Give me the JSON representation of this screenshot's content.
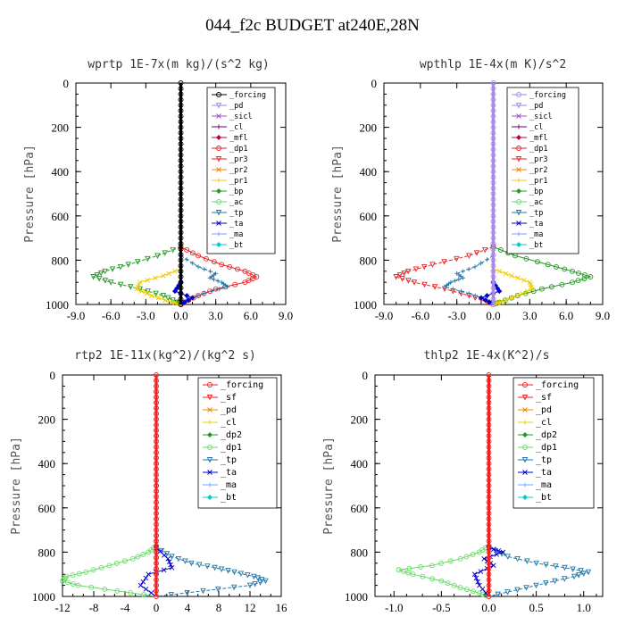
{
  "figure_title": "044_f2c  BUDGET at240E,28N",
  "colors": {
    "black": "#000000",
    "purple": "#9955cc",
    "violet": "#aa88ee",
    "darkpurple": "#660066",
    "crimson": "#bb0044",
    "red": "#ee2222",
    "orange": "#ee8800",
    "yellow": "#eecc00",
    "lightgreen": "#66dd66",
    "green": "#229922",
    "teal": "#2277aa",
    "blue": "#0000cc",
    "lightblue": "#66aaff",
    "cyan": "#00cccc"
  },
  "chart_data": [
    {
      "type": "line",
      "title": "wprtp  1E-7x(m kg)/(s^2 kg)",
      "ylabel": "Pressure [hPa]",
      "xlim": [
        -9,
        9
      ],
      "ylim": [
        1000,
        0
      ],
      "xticks": [
        "-9.0",
        "-6.0",
        "-3.0",
        "0.0",
        "3.0",
        "6.0",
        "9.0"
      ],
      "xtick_values": [
        -9,
        -6,
        -3,
        0,
        3,
        6,
        9
      ],
      "yticks": [
        "0",
        "200",
        "400",
        "600",
        "800",
        "1000"
      ],
      "ytick_values": [
        0,
        200,
        400,
        600,
        800,
        1000
      ],
      "legend_entries": [
        "_forcing",
        "_pd",
        "_sicl",
        "_cl",
        "_mfl",
        "_dp1",
        "_pr3",
        "_pr2",
        "_pr1",
        "_bp",
        "_ac",
        "_tp",
        "_ta",
        "_ma",
        "_bt"
      ],
      "legend_colors": [
        "black",
        "violet",
        "purple",
        "darkpurple",
        "crimson",
        "red",
        "red",
        "orange",
        "yellow",
        "green",
        "lightgreen",
        "teal",
        "blue",
        "lightblue",
        "cyan"
      ],
      "series": [
        {
          "color": "red",
          "p": [
            740,
            780,
            820,
            850,
            875,
            900,
            930,
            960,
            990,
            1000
          ],
          "x": [
            0,
            1.5,
            3.5,
            5.5,
            6.5,
            5.5,
            3.0,
            1.5,
            0.3,
            0
          ]
        },
        {
          "color": "green",
          "p": [
            740,
            780,
            820,
            850,
            875,
            900,
            930,
            960,
            990,
            1000
          ],
          "x": [
            0,
            -2.0,
            -4.5,
            -6.5,
            -7.5,
            -6.0,
            -3.5,
            -1.5,
            -0.3,
            0
          ]
        },
        {
          "color": "yellow",
          "p": [
            840,
            870,
            900,
            930,
            960,
            990,
            1000
          ],
          "x": [
            0,
            -1.5,
            -3.5,
            -3.8,
            -2.5,
            -0.8,
            0
          ]
        },
        {
          "color": "teal",
          "p": [
            780,
            830,
            860,
            880,
            900,
            920,
            950,
            980,
            1000
          ],
          "x": [
            0,
            1.5,
            3.0,
            2.5,
            3.5,
            4.0,
            2.0,
            0.5,
            0
          ]
        },
        {
          "color": "blue",
          "p": [
            900,
            940,
            970,
            1000
          ],
          "x": [
            0,
            -0.5,
            1.0,
            0
          ]
        },
        {
          "color": "black",
          "p": [
            0,
            1000
          ],
          "x": [
            0,
            0
          ]
        }
      ]
    },
    {
      "type": "line",
      "title": "wpthlp  1E-4x(m K)/s^2",
      "ylabel": "Pressure [hPa]",
      "xlim": [
        -9,
        9
      ],
      "ylim": [
        1000,
        0
      ],
      "xticks": [
        "-9.0",
        "-6.0",
        "-3.0",
        "0.0",
        "3.0",
        "6.0",
        "9.0"
      ],
      "xtick_values": [
        -9,
        -6,
        -3,
        0,
        3,
        6,
        9
      ],
      "yticks": [
        "0",
        "200",
        "400",
        "600",
        "800",
        "1000"
      ],
      "ytick_values": [
        0,
        200,
        400,
        600,
        800,
        1000
      ],
      "legend_entries": [
        "_forcing",
        "_pd",
        "_sicl",
        "_cl",
        "_mfl",
        "_dp1",
        "_pr3",
        "_pr2",
        "_pr1",
        "_bp",
        "_ac",
        "_tp",
        "_ta",
        "_ma",
        "_bt"
      ],
      "legend_colors": [
        "violet",
        "violet",
        "purple",
        "darkpurple",
        "crimson",
        "red",
        "red",
        "orange",
        "yellow",
        "green",
        "lightgreen",
        "teal",
        "blue",
        "lightblue",
        "cyan"
      ],
      "series": [
        {
          "color": "green",
          "p": [
            740,
            780,
            820,
            850,
            875,
            900,
            930,
            960,
            990,
            1000
          ],
          "x": [
            0,
            1.8,
            4.5,
            6.5,
            8.0,
            6.5,
            4.0,
            2.0,
            0.5,
            0
          ]
        },
        {
          "color": "red",
          "p": [
            740,
            780,
            820,
            850,
            875,
            900,
            930,
            960,
            990,
            1000
          ],
          "x": [
            0,
            -2.0,
            -5.0,
            -7.0,
            -8.0,
            -6.5,
            -4.0,
            -2.0,
            -0.5,
            0
          ]
        },
        {
          "color": "yellow",
          "p": [
            840,
            870,
            900,
            930,
            960,
            990,
            1000
          ],
          "x": [
            0,
            1.5,
            3.0,
            3.2,
            2.0,
            0.6,
            0
          ]
        },
        {
          "color": "teal",
          "p": [
            780,
            830,
            860,
            880,
            900,
            920,
            950,
            980,
            1000
          ],
          "x": [
            0,
            -1.5,
            -3.0,
            -2.5,
            -3.5,
            -4.0,
            -2.0,
            -0.5,
            0
          ]
        },
        {
          "color": "blue",
          "p": [
            900,
            940,
            970,
            1000
          ],
          "x": [
            0,
            0.5,
            -1.0,
            0
          ]
        },
        {
          "color": "violet",
          "p": [
            0,
            1000
          ],
          "x": [
            0,
            0
          ]
        }
      ]
    },
    {
      "type": "line",
      "title": "rtp2  1E-11x(kg^2)/(kg^2 s)",
      "ylabel": "Pressure [hPa]",
      "xlim": [
        -12,
        16
      ],
      "ylim": [
        1000,
        0
      ],
      "xticks": [
        "-12",
        "-8",
        "-4",
        "0",
        "4",
        "8",
        "12",
        "16"
      ],
      "xtick_values": [
        -12,
        -8,
        -4,
        0,
        4,
        8,
        12,
        16
      ],
      "yticks": [
        "0",
        "200",
        "400",
        "600",
        "800",
        "1000"
      ],
      "ytick_values": [
        0,
        200,
        400,
        600,
        800,
        1000
      ],
      "legend_entries": [
        "_forcing",
        "_sf",
        "_pd",
        "_cl",
        "_dp2",
        "_dp1",
        "_tp",
        "_ta",
        "_ma",
        "_bt"
      ],
      "legend_colors": [
        "red",
        "red",
        "orange",
        "yellow",
        "green",
        "lightgreen",
        "teal",
        "blue",
        "lightblue",
        "cyan"
      ],
      "series": [
        {
          "color": "lightgreen",
          "p": [
            770,
            800,
            830,
            860,
            890,
            910,
            930,
            950,
            975,
            1000
          ],
          "x": [
            0,
            -1.0,
            -3.0,
            -6.0,
            -9.0,
            -11.5,
            -12.0,
            -10.0,
            -5.0,
            0
          ]
        },
        {
          "color": "teal",
          "p": [
            780,
            820,
            850,
            870,
            890,
            910,
            930,
            950,
            975,
            1000
          ],
          "x": [
            0,
            2.0,
            4.5,
            7.5,
            10.0,
            12.5,
            14.0,
            12.0,
            6.0,
            0
          ]
        },
        {
          "color": "blue",
          "p": [
            780,
            830,
            870,
            900,
            950,
            1000
          ],
          "x": [
            0,
            1.5,
            2.0,
            -1.0,
            -2.0,
            0
          ]
        },
        {
          "color": "red",
          "p": [
            0,
            1000
          ],
          "x": [
            0,
            0
          ]
        }
      ]
    },
    {
      "type": "line",
      "title": "thlp2  1E-4x(K^2)/s",
      "ylabel": "Pressure [hPa]",
      "xlim": [
        -1.2,
        1.2
      ],
      "ylim": [
        1000,
        0
      ],
      "xticks": [
        "-1.0",
        "-0.5",
        "0.0",
        "0.5",
        "1.0"
      ],
      "xtick_values": [
        -1.0,
        -0.5,
        0.0,
        0.5,
        1.0
      ],
      "yticks": [
        "0",
        "200",
        "400",
        "600",
        "800",
        "1000"
      ],
      "ytick_values": [
        0,
        200,
        400,
        600,
        800,
        1000
      ],
      "legend_entries": [
        "_forcing",
        "_sf",
        "_pd",
        "_cl",
        "_dp2",
        "_dp1",
        "_tp",
        "_ta",
        "_ma",
        "_bt"
      ],
      "legend_colors": [
        "red",
        "red",
        "orange",
        "yellow",
        "green",
        "lightgreen",
        "teal",
        "blue",
        "lightblue",
        "cyan"
      ],
      "series": [
        {
          "color": "lightgreen",
          "p": [
            770,
            800,
            830,
            860,
            880,
            900,
            930,
            960,
            985,
            1000
          ],
          "x": [
            0,
            -0.1,
            -0.3,
            -0.6,
            -0.95,
            -0.8,
            -0.5,
            -0.3,
            -0.1,
            0
          ]
        },
        {
          "color": "teal",
          "p": [
            780,
            820,
            850,
            870,
            890,
            910,
            940,
            970,
            1000
          ],
          "x": [
            0,
            0.2,
            0.5,
            0.8,
            1.05,
            0.9,
            0.6,
            0.3,
            0
          ]
        },
        {
          "color": "blue",
          "p": [
            780,
            800,
            830,
            860,
            900,
            950,
            1000
          ],
          "x": [
            0,
            0.15,
            -0.05,
            0.05,
            -0.15,
            -0.1,
            0
          ]
        },
        {
          "color": "red",
          "p": [
            0,
            1000
          ],
          "x": [
            0,
            0
          ]
        }
      ]
    }
  ]
}
